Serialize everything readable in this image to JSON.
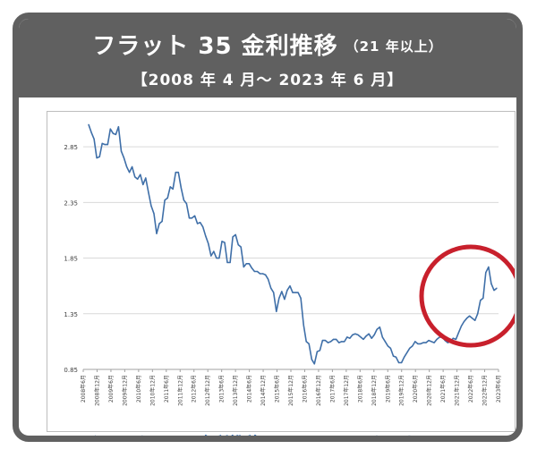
{
  "header": {
    "title": "フラット 35 金利推移",
    "title_suffix": "（21 年以上）",
    "period": "【2008 年 4 月～ 2023 年 6 月】"
  },
  "link_text": "クリックすると金利推移のページへリンクします。",
  "colors": {
    "frame": "#606060",
    "line": "#3f6fa8",
    "highlight_circle": "#c8202c",
    "link": "#1a5aa8"
  },
  "chart_data": {
    "type": "line",
    "title": "",
    "xlabel": "",
    "ylabel": "",
    "ylim": [
      0.85,
      3.1
    ],
    "yticks": [
      "0.85",
      "1.35",
      "1.85",
      "2.35",
      "2.85"
    ],
    "xticks": [
      "2008年6月",
      "2008年12月",
      "2009年6月",
      "2009年12月",
      "2010年6月",
      "2010年12月",
      "2011年6月",
      "2011年12月",
      "2012年6月",
      "2012年12月",
      "2013年6月",
      "2013年12月",
      "2014年6月",
      "2014年12月",
      "2015年6月",
      "2015年12月",
      "2016年6月",
      "2016年12月",
      "2017年6月",
      "2017年12月",
      "2018年6月",
      "2018年12月",
      "2019年6月",
      "2019年12月",
      "2020年6月",
      "2020年12月",
      "2021年6月",
      "2021年12月",
      "2022年6月",
      "2022年12月",
      "2023年6月"
    ],
    "grid": true,
    "series": [
      {
        "values": [
          3.05,
          2.98,
          2.92,
          2.75,
          2.76,
          2.88,
          2.87,
          2.87,
          3.01,
          2.97,
          2.96,
          3.03,
          2.81,
          2.75,
          2.67,
          2.62,
          2.67,
          2.58,
          2.56,
          2.6,
          2.51,
          2.57,
          2.44,
          2.32,
          2.25,
          2.07,
          2.16,
          2.18,
          2.37,
          2.39,
          2.49,
          2.47,
          2.62,
          2.62,
          2.48,
          2.37,
          2.34,
          2.21,
          2.21,
          2.23,
          2.16,
          2.17,
          2.13,
          2.05,
          1.98,
          1.87,
          1.91,
          1.85,
          1.85,
          2.0,
          1.99,
          1.81,
          1.81,
          2.04,
          2.06,
          1.97,
          1.95,
          1.77,
          1.8,
          1.8,
          1.76,
          1.73,
          1.73,
          1.71,
          1.71,
          1.7,
          1.66,
          1.58,
          1.54,
          1.37,
          1.49,
          1.55,
          1.48,
          1.56,
          1.6,
          1.54,
          1.54,
          1.54,
          1.49,
          1.25,
          1.1,
          1.08,
          0.94,
          0.9,
          1.01,
          1.02,
          1.11,
          1.11,
          1.09,
          1.1,
          1.12,
          1.12,
          1.09,
          1.1,
          1.1,
          1.14,
          1.13,
          1.16,
          1.17,
          1.16,
          1.14,
          1.12,
          1.15,
          1.17,
          1.13,
          1.16,
          1.21,
          1.23,
          1.14,
          1.1,
          1.06,
          1.04,
          0.97,
          0.96,
          0.91,
          0.91,
          0.96,
          1.0,
          1.04,
          1.06,
          1.1,
          1.08,
          1.08,
          1.09,
          1.09,
          1.11,
          1.1,
          1.09,
          1.12,
          1.14,
          1.14,
          1.11,
          1.09,
          1.1,
          1.13,
          1.12,
          1.18,
          1.24,
          1.28,
          1.31,
          1.33,
          1.31,
          1.29,
          1.35,
          1.47,
          1.49,
          1.72,
          1.77,
          1.62,
          1.56,
          1.58
        ]
      }
    ]
  }
}
